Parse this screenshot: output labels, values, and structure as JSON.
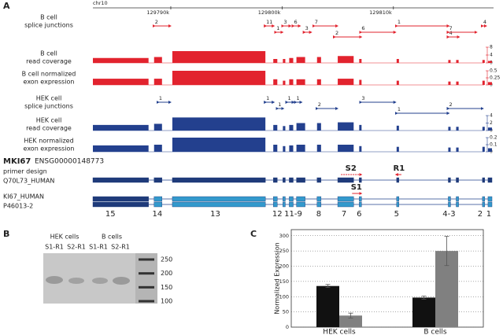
{
  "panels": {
    "a": "A",
    "b": "B",
    "c": "C"
  },
  "chromosome": "chr10",
  "genome_axis": {
    "xlim": [
      129783000,
      129819000
    ],
    "xticks": [
      {
        "value": 129790000,
        "label": "129790k"
      },
      {
        "value": 129800000,
        "label": "129800k"
      },
      {
        "value": 129810000,
        "label": "129810k"
      }
    ]
  },
  "tracks": [
    {
      "kind": "junctions",
      "label": [
        "B cell",
        "splice junctions"
      ],
      "color": "#e2232e",
      "junctions": [
        {
          "label": "2",
          "start": 129788500,
          "end": 129789930
        },
        {
          "label": "11",
          "start": 129798500,
          "end": 129799210
        },
        {
          "label": "1",
          "start": 129799430,
          "end": 129800000
        },
        {
          "label": "3",
          "start": 129800070,
          "end": 129800710
        },
        {
          "label": "6",
          "start": 129801000,
          "end": 129801570
        },
        {
          "label": "3",
          "start": 129802000,
          "end": 129802570
        },
        {
          "label": "7",
          "start": 129802860,
          "end": 129804930
        },
        {
          "label": "2",
          "start": 129804710,
          "end": 129807070
        },
        {
          "label": "6",
          "start": 129807070,
          "end": 129810140
        },
        {
          "label": "1",
          "start": 129810290,
          "end": 129814930
        },
        {
          "label": "4",
          "start": 129814930,
          "end": 129815860
        },
        {
          "label": "7",
          "start": 129814930,
          "end": 129817430
        },
        {
          "label": "4",
          "start": 129818000,
          "end": 129818290
        }
      ]
    },
    {
      "kind": "coverage",
      "label": [
        "B cell",
        "read coverage"
      ],
      "color": "#e2232e",
      "ylim": [
        0,
        8
      ],
      "yticks": [
        0,
        4,
        8
      ],
      "values": [
        2.5,
        3,
        6,
        2,
        2,
        2.5,
        3,
        3,
        3.5,
        2,
        2,
        1.5,
        1.5,
        1.5,
        1
      ]
    },
    {
      "kind": "exon_expression",
      "label": [
        "B cell normalized",
        "exon expression"
      ],
      "color": "#e2232e",
      "ylim": [
        0,
        0.5
      ],
      "yticks": [
        0,
        0.25,
        0.5
      ],
      "values": [
        0.22,
        0.22,
        0.5,
        0.2,
        0.15,
        0.2,
        0.2,
        0.2,
        0.22,
        0.18,
        0.15,
        0.12,
        0.12,
        0.15,
        0.1
      ]
    },
    {
      "kind": "junctions",
      "label": [
        "HEK cell",
        "splice junctions"
      ],
      "color": "#23408e",
      "junctions": [
        {
          "label": "1",
          "start": 129788860,
          "end": 129789930
        },
        {
          "label": "1",
          "start": 129798500,
          "end": 129799210
        },
        {
          "label": "1",
          "start": 129799570,
          "end": 129800070
        },
        {
          "label": "1",
          "start": 129800430,
          "end": 129801000
        },
        {
          "label": "1",
          "start": 129801210,
          "end": 129801710
        },
        {
          "label": "2",
          "start": 129803140,
          "end": 129804930
        },
        {
          "label": "3",
          "start": 129807070,
          "end": 129810140
        },
        {
          "label": "1",
          "start": 129810290,
          "end": 129814930
        },
        {
          "label": "2",
          "start": 129814930,
          "end": 129818000
        }
      ]
    },
    {
      "kind": "coverage",
      "label": [
        "HEK cell",
        "read coverage"
      ],
      "color": "#23408e",
      "ylim": [
        0,
        4
      ],
      "yticks": [
        0,
        2,
        4
      ],
      "values": [
        1.5,
        1.8,
        3.5,
        1.5,
        1.2,
        1.5,
        2,
        2,
        2.2,
        1.5,
        1.3,
        1,
        1,
        1,
        0.8
      ]
    },
    {
      "kind": "exon_expression",
      "label": [
        "HEK normalized",
        "exon expression"
      ],
      "color": "#23408e",
      "ylim": [
        0,
        0.2
      ],
      "yticks": [
        0,
        0.1,
        0.2
      ],
      "values": [
        0.09,
        0.1,
        0.2,
        0.1,
        0.08,
        0.09,
        0.1,
        0.1,
        0.1,
        0.08,
        0.07,
        0.06,
        0.06,
        0.07,
        0.05
      ]
    }
  ],
  "gene": {
    "symbol": "MKI67",
    "id": "ENSG00000148773",
    "exons": [
      [
        129783000,
        129788000
      ],
      [
        129788500,
        129789210
      ],
      [
        129790140,
        129798500
      ],
      [
        129799210,
        129799570
      ],
      [
        129800070,
        129800290
      ],
      [
        129800640,
        129801000
      ],
      [
        129801290,
        129802070
      ],
      [
        129803140,
        129803500
      ],
      [
        129805000,
        129806430
      ],
      [
        129806930,
        129807140
      ],
      [
        129810290,
        129810500
      ],
      [
        129814930,
        129815140
      ],
      [
        129815640,
        129815860
      ],
      [
        129818000,
        129818210
      ],
      [
        129818500,
        129818860
      ]
    ],
    "transcripts": [
      {
        "label": [
          "primer design",
          "Q70L73_HUMAN"
        ]
      },
      {
        "label": [
          "KI67_HUMAN",
          "P46013-2"
        ]
      }
    ],
    "primers": [
      {
        "label": "S2",
        "start": 129805290,
        "end": 129807070,
        "strand": "+"
      },
      {
        "label": "R1",
        "start": 129810290,
        "end": 129810720,
        "strand": "-"
      },
      {
        "label": "S1",
        "start": 129806290,
        "end": 129807070,
        "strand": "+"
      }
    ],
    "exon_labels": [
      {
        "label": "15",
        "position": 129784570
      },
      {
        "label": "14",
        "position": 129788790
      },
      {
        "label": "13",
        "position": 129794000
      },
      {
        "label": "12",
        "position": 129799570
      },
      {
        "label": "11-9",
        "position": 129801000
      },
      {
        "label": "8",
        "position": 129803290
      },
      {
        "label": "7",
        "position": 129805570
      },
      {
        "label": "6",
        "position": 129806930
      },
      {
        "label": "5",
        "position": 129810290
      },
      {
        "label": "4-3",
        "position": 129815000
      },
      {
        "label": "2",
        "position": 129817790
      },
      {
        "label": "1",
        "position": 129818570
      }
    ]
  },
  "gel": {
    "groups": [
      "HEK cells",
      "B cells"
    ],
    "lanes": [
      "S1-R1",
      "S2-R1",
      "S1-R1",
      "S2-R1"
    ],
    "ladder": [
      250,
      200,
      150,
      100
    ]
  },
  "chart_data": {
    "type": "bar",
    "ylabel": "Normalized Expression",
    "categories": [
      "HEK cells",
      "B cells"
    ],
    "series": [
      {
        "color": "#111111",
        "values": [
          135,
          97
        ],
        "errors": [
          5,
          5
        ]
      },
      {
        "color": "#808080",
        "values": [
          38,
          250
        ],
        "errors": [
          8,
          48
        ]
      }
    ],
    "ylim": [
      0,
      320
    ],
    "yticks": [
      0,
      50,
      100,
      150,
      200,
      250,
      300
    ],
    "grid": true
  }
}
